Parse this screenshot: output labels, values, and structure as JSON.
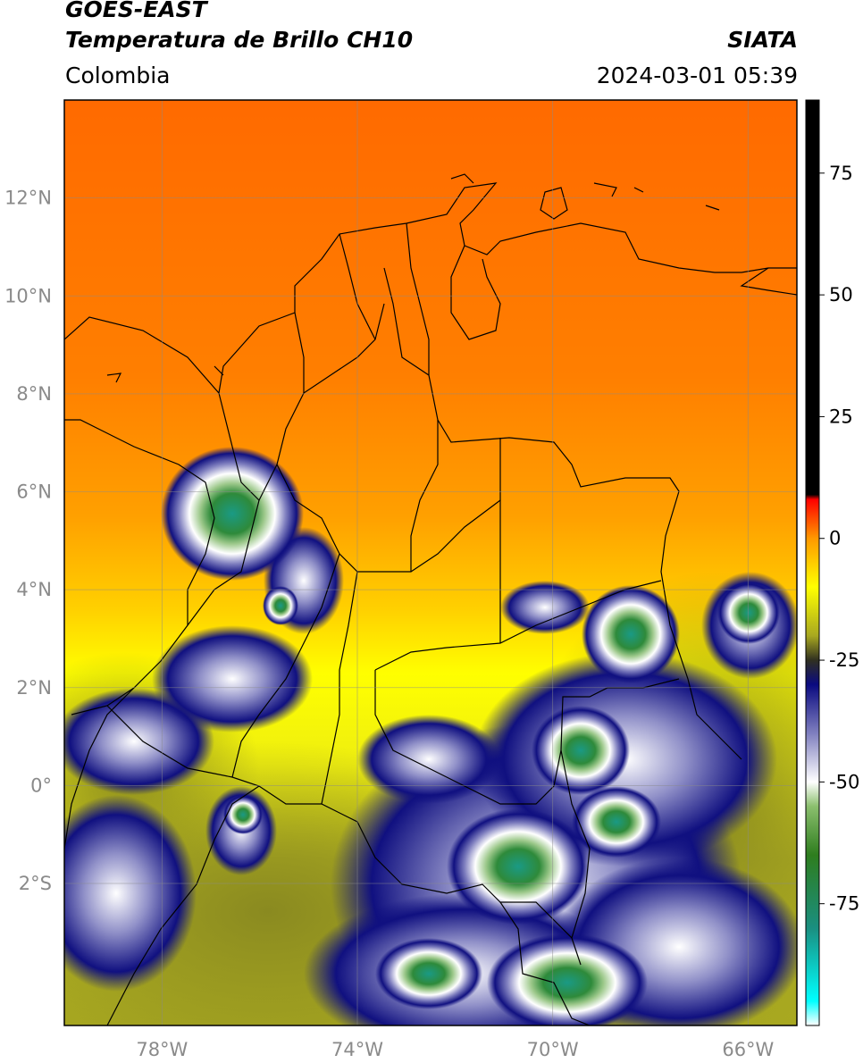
{
  "header": {
    "satellite": "GOES-EAST",
    "product": "Temperatura de Brillo CH10",
    "brand": "SIATA",
    "region": "Colombia",
    "timestamp": "2024-03-01 05:39"
  },
  "map": {
    "lon_range": [
      -80,
      -65
    ],
    "lat_range": [
      -4.9,
      14
    ],
    "lon_ticks": [
      {
        "value": -78,
        "label": "78°W"
      },
      {
        "value": -74,
        "label": "74°W"
      },
      {
        "value": -70,
        "label": "70°W"
      },
      {
        "value": -66,
        "label": "66°W"
      }
    ],
    "lat_ticks": [
      {
        "value": 12,
        "label": "12°N"
      },
      {
        "value": 10,
        "label": "10°N"
      },
      {
        "value": 8,
        "label": "8°N"
      },
      {
        "value": 6,
        "label": "6°N"
      },
      {
        "value": 4,
        "label": "4°N"
      },
      {
        "value": 2,
        "label": "2°N"
      },
      {
        "value": 0,
        "label": "0°"
      },
      {
        "value": -2,
        "label": "2°S"
      }
    ]
  },
  "colorbar": {
    "range": [
      -100,
      90
    ],
    "ticks": [
      {
        "value": 75,
        "label": "75"
      },
      {
        "value": 50,
        "label": "50"
      },
      {
        "value": 25,
        "label": "25"
      },
      {
        "value": 0,
        "label": "0"
      },
      {
        "value": -25,
        "label": "-25"
      },
      {
        "value": -50,
        "label": "-50"
      },
      {
        "value": -75,
        "label": "-75"
      }
    ],
    "stops": [
      {
        "value": -100,
        "color": "#ffffff"
      },
      {
        "value": -95,
        "color": "#00ffff"
      },
      {
        "value": -80,
        "color": "#1a8f80"
      },
      {
        "value": -65,
        "color": "#2e7d1e"
      },
      {
        "value": -55,
        "color": "#8bbf6e"
      },
      {
        "value": -50,
        "color": "#ffffff"
      },
      {
        "value": -40,
        "color": "#7f7fbf"
      },
      {
        "value": -30,
        "color": "#0a0a80"
      },
      {
        "value": -25,
        "color": "#303020"
      },
      {
        "value": -20,
        "color": "#a8a820"
      },
      {
        "value": -10,
        "color": "#ffff00"
      },
      {
        "value": 0,
        "color": "#ff9900"
      },
      {
        "value": 8,
        "color": "#ff0000"
      },
      {
        "value": 9,
        "color": "#000000"
      },
      {
        "value": 90,
        "color": "#000000"
      }
    ]
  }
}
